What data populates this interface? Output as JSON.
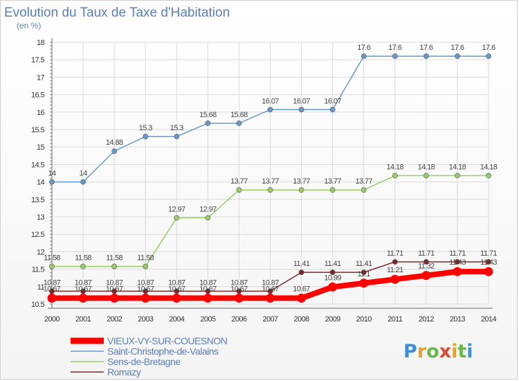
{
  "title": "Evolution du Taux de Taxe d'Habitation",
  "subtitle": "(en %)",
  "logo_text": "Proxiti",
  "chart_data": {
    "type": "line",
    "title": "Evolution du Taux de Taxe d'Habitation",
    "ylabel": "(en %)",
    "xlabel": "",
    "x": [
      2000,
      2001,
      2002,
      2003,
      2004,
      2005,
      2006,
      2007,
      2008,
      2009,
      2010,
      2011,
      2012,
      2013,
      2014
    ],
    "ylim": [
      10.5,
      18
    ],
    "yticks": [
      "10.5",
      "11",
      "11.5",
      "12",
      "12.5",
      "13",
      "13.5",
      "14",
      "14.5",
      "15",
      "15.5",
      "16",
      "16.5",
      "17",
      "17.5",
      "18"
    ],
    "grid": true,
    "legend_position": "bottom-left",
    "series": [
      {
        "name": "VIEUX-VY-SUR-COUESNON",
        "color": "#ff0000",
        "values": [
          10.67,
          10.67,
          10.67,
          10.67,
          10.67,
          10.67,
          10.67,
          10.67,
          10.67,
          10.99,
          11.1,
          11.21,
          11.32,
          11.43,
          11.43
        ],
        "labels": [
          "10.67",
          "10.67",
          "10.67",
          "10.67",
          "10.67",
          "10.67",
          "10.67",
          "10.67",
          "10.67",
          "10.99",
          "11.1",
          "11.21",
          "11.32",
          "11.43",
          "11.43"
        ]
      },
      {
        "name": "Saint-Christophe-de-Valains",
        "color": "#6699cc",
        "values": [
          14,
          14,
          14.88,
          15.3,
          15.3,
          15.68,
          15.68,
          16.07,
          16.07,
          16.07,
          17.6,
          17.6,
          17.6,
          17.6,
          17.6
        ],
        "labels": [
          "14",
          "14",
          "14.88",
          "15.3",
          "15.3",
          "15.68",
          "15.68",
          "16.07",
          "16.07",
          "16.07",
          "17.6",
          "17.6",
          "17.6",
          "17.6",
          "17.6"
        ]
      },
      {
        "name": "Sens-de-Bretagne",
        "color": "#99cc66",
        "values": [
          11.58,
          11.58,
          11.58,
          11.58,
          12.97,
          12.97,
          13.77,
          13.77,
          13.77,
          13.77,
          13.77,
          14.18,
          14.18,
          14.18,
          14.18
        ],
        "labels": [
          "11.58",
          "11.58",
          "11.58",
          "11.58",
          "12.97",
          "12.97",
          "13.77",
          "13.77",
          "13.77",
          "13.77",
          "13.77",
          "14.18",
          "14.18",
          "14.18",
          "14.18"
        ]
      },
      {
        "name": "Romazy",
        "color": "#7a2a2a",
        "values": [
          10.87,
          10.87,
          10.87,
          10.87,
          10.87,
          10.87,
          10.87,
          10.87,
          11.41,
          11.41,
          11.41,
          11.71,
          11.71,
          11.71,
          11.71
        ],
        "labels": [
          "10.87",
          "10.87",
          "10.87",
          "10.87",
          "10.87",
          "10.87",
          "10.87",
          "10.87",
          "11.41",
          "11.41",
          "11.41",
          "11.71",
          "11.71",
          "11.71",
          "11.71"
        ]
      }
    ]
  }
}
